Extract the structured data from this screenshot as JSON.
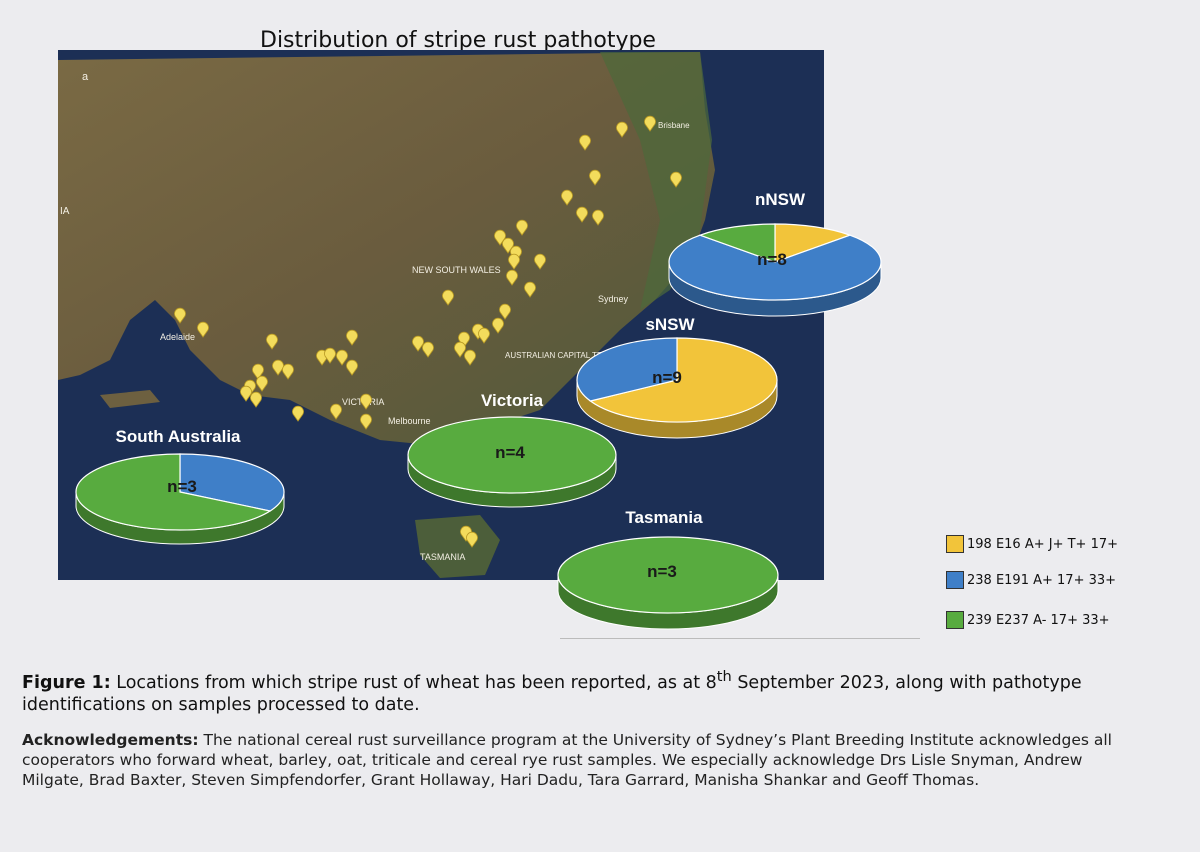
{
  "title": "Distribution of stripe rust pathotype",
  "colors": {
    "yellow": "#f2c43a",
    "blue": "#3f7fc8",
    "green": "#58ab3f",
    "ocean": "#1c2f55",
    "land": "#6d6040"
  },
  "map_labels": {
    "a": "a",
    "ia": "IA",
    "nsw": "NEW SOUTH WALES",
    "sydney": "Sydney",
    "act": "AUSTRALIAN CAPITAL TERRITORY",
    "adelaide": "Adelaide",
    "melbourne": "Melbourne",
    "victoria": "VICTORIA",
    "tasmania": "TASMANIA",
    "brisbane": "Brisbane"
  },
  "chart_data": {
    "type": "pie",
    "series": [
      {
        "name": "198 E16 A+ J+ T+ 17+",
        "color": "#f2c43a"
      },
      {
        "name": "238 E191 A+ 17+ 33+",
        "color": "#3f7fc8"
      },
      {
        "name": "239 E237 A- 17+ 33+",
        "color": "#58ab3f"
      }
    ],
    "pies": [
      {
        "region": "nNSW",
        "label": "n=8",
        "values": [
          1,
          6,
          1
        ]
      },
      {
        "region": "sNSW",
        "label": "n=9",
        "values": [
          6,
          3,
          0
        ]
      },
      {
        "region": "Victoria",
        "label": "n=4",
        "values": [
          0,
          0,
          4
        ]
      },
      {
        "region": "South Australia",
        "label": "n=3",
        "values": [
          0,
          1,
          2
        ]
      },
      {
        "region": "Tasmania",
        "label": "n=3",
        "values": [
          0,
          0,
          3
        ]
      }
    ]
  },
  "caption": {
    "label": "Figure 1:",
    "text_a": " Locations from which stripe rust of wheat has been reported, as at 8",
    "sup": "th",
    "text_b": " September 2023, along with pathotype identifications on samples processed to date."
  },
  "ack": {
    "label": "Acknowledgements:",
    "text": " The national cereal rust surveillance program at the University of Sydney’s Plant Breeding Institute acknowledges all cooperators who forward wheat, barley, oat, triticale and cereal rye rust samples. We especially acknowledge Drs Lisle Snyman, Andrew Milgate, Brad Baxter, Steven Simpfendorfer, Grant Hollaway, Hari Dadu, Tara Garrard, Manisha Shankar and Geoff Thomas."
  }
}
